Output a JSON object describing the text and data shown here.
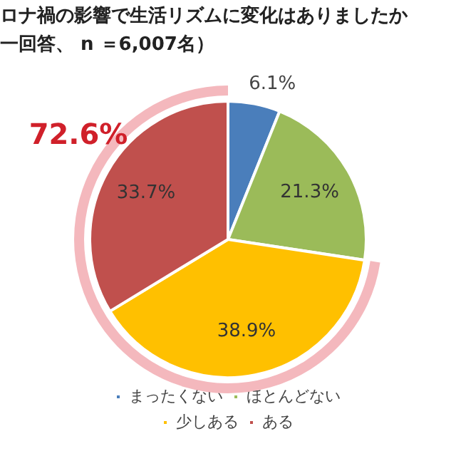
{
  "chart_data": {
    "type": "pie",
    "title": "ロナ禍の影響で生活リズムに変化はありましたか",
    "subtitle": "一回答、 n ＝6,007名）",
    "categories": [
      "まったくない",
      "ほとんどない",
      "少しある",
      "ある"
    ],
    "values": [
      6.1,
      21.3,
      38.9,
      33.7
    ],
    "colors": [
      "#4a7ebb",
      "#9bbb59",
      "#ffc000",
      "#c0504d"
    ],
    "value_labels": [
      "6.1%",
      "21.3%",
      "38.9%",
      "33.7%"
    ],
    "annotations": [
      "72.6%"
    ],
    "legend": "bottom"
  }
}
